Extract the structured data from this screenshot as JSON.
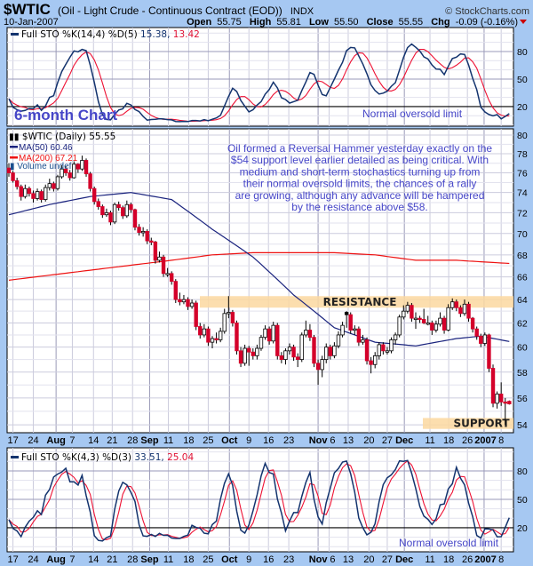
{
  "header": {
    "symbol": "$WTIC",
    "description": "(Oil - Light Crude - Continuous Contract (EOD))",
    "exchange": "INDX",
    "date": "10-Jan-2007",
    "watermark": "© StockCharts.com",
    "open_label": "Open",
    "open": "55.75",
    "high_label": "High",
    "high": "55.81",
    "low_label": "Low",
    "low": "55.50",
    "close_label": "Close",
    "close": "55.55",
    "chg_label": "Chg",
    "chg": "-0.09 (-0.16%)"
  },
  "colors": {
    "background": "#a6c8f2",
    "up": "#ffffff",
    "down": "#d4002a",
    "ma50": "#1a237e",
    "ma200": "#ee1111",
    "k_line": "#13336e",
    "d_line": "#ee1133",
    "annotation": "#4646c8",
    "band": "#fbd8a0"
  },
  "top_panel": {
    "legend": "Full STO %K(14,4) %D(5)",
    "k_value": "15.38",
    "d_value": "13.42",
    "title_note": "6-month Chart",
    "note": "Normal oversold limit",
    "ticks": [
      "80",
      "50",
      "20"
    ]
  },
  "main_panel": {
    "legend_price": "$WTIC (Daily) 55.55",
    "legend_ma50": "MA(50) 60.46",
    "legend_ma200": "MA(200) 67.21",
    "legend_volume": "Volume undef",
    "commentary": [
      "Oil formed a Reversal Hammer yesterday exactly on the",
      "$54 support level earlier detailed as being critical. With",
      "medium and short-term stochastics turning up from",
      "their normal oversold limits, the chances of a rally",
      "are growing, although any advance will be hampered",
      "by the resistance above $58."
    ],
    "resistance_label": "RESISTANCE",
    "support_label": "SUPPORT",
    "ticks": [
      "80",
      "78",
      "76",
      "74",
      "72",
      "70",
      "68",
      "66",
      "64",
      "62",
      "60",
      "58",
      "56",
      "54"
    ]
  },
  "bottom_panel": {
    "legend": "Full STO %K(4,3) %D(3)",
    "k_value": "33.51",
    "d_value": "25.04",
    "note": "Normal oversold limit",
    "ticks": [
      "80",
      "50",
      "20"
    ]
  },
  "chart_data": {
    "type": "candlestick",
    "scale": "log",
    "ylim": [
      53.7,
      81
    ],
    "grid": true,
    "first_session": "2006-07-14",
    "last_session": "2007-01-10",
    "x_ticks": [
      {
        "label": "17",
        "i": 1
      },
      {
        "label": "24",
        "i": 6
      },
      {
        "label": "Aug",
        "i": 11.6,
        "bold": true
      },
      {
        "label": "7",
        "i": 15.6
      },
      {
        "label": "14",
        "i": 20.8
      },
      {
        "label": "21",
        "i": 25.4
      },
      {
        "label": "28",
        "i": 30.4
      },
      {
        "label": "Sep",
        "i": 34.6,
        "bold": true
      },
      {
        "label": "11",
        "i": 39.2
      },
      {
        "label": "18",
        "i": 44.2
      },
      {
        "label": "25",
        "i": 49
      },
      {
        "label": "Oct",
        "i": 54.2,
        "bold": true
      },
      {
        "label": "9",
        "i": 59
      },
      {
        "label": "16",
        "i": 63.8
      },
      {
        "label": "23",
        "i": 68.8
      },
      {
        "label": "Nov",
        "i": 76,
        "bold": true
      },
      {
        "label": "6",
        "i": 78.7
      },
      {
        "label": "13",
        "i": 83.4
      },
      {
        "label": "20",
        "i": 88.5
      },
      {
        "label": "27",
        "i": 93
      },
      {
        "label": "Dec",
        "i": 97.2,
        "bold": true
      },
      {
        "label": "11",
        "i": 103.5
      },
      {
        "label": "18",
        "i": 108.1
      },
      {
        "label": "26",
        "i": 112.7
      },
      {
        "label": "2007",
        "i": 116.8,
        "bold": true
      },
      {
        "label": "8",
        "i": 121
      }
    ],
    "ohlc": [
      [
        76.5,
        77.0,
        75.6,
        76.0
      ],
      [
        76.0,
        76.2,
        75.0,
        75.2
      ],
      [
        75.2,
        75.5,
        74.3,
        74.6
      ],
      [
        74.6,
        74.8,
        73.2,
        73.6
      ],
      [
        73.6,
        74.8,
        73.4,
        74.4
      ],
      [
        74.4,
        74.6,
        73.6,
        73.9
      ],
      [
        73.9,
        74.2,
        73.0,
        73.4
      ],
      [
        73.4,
        74.4,
        73.2,
        74.1
      ],
      [
        74.1,
        74.3,
        73.0,
        73.3
      ],
      [
        73.3,
        74.8,
        73.1,
        74.5
      ],
      [
        74.5,
        75.4,
        74.2,
        74.9
      ],
      [
        74.9,
        75.1,
        74.1,
        74.4
      ],
      [
        74.4,
        75.8,
        74.2,
        75.6
      ],
      [
        75.6,
        76.8,
        75.4,
        76.4
      ],
      [
        76.4,
        76.7,
        75.7,
        76.0
      ],
      [
        76.0,
        76.3,
        75.2,
        75.5
      ],
      [
        75.5,
        77.2,
        75.4,
        76.9
      ],
      [
        76.9,
        77.0,
        76.0,
        76.4
      ],
      [
        76.4,
        77.8,
        76.2,
        77.3
      ],
      [
        77.3,
        77.5,
        75.6,
        75.9
      ],
      [
        75.9,
        76.1,
        74.1,
        74.4
      ],
      [
        74.4,
        74.6,
        72.8,
        73.1
      ],
      [
        73.1,
        73.4,
        72.3,
        72.6
      ],
      [
        72.6,
        72.8,
        71.5,
        71.8
      ],
      [
        71.8,
        72.4,
        71.6,
        72.0
      ],
      [
        72.0,
        72.2,
        70.8,
        71.1
      ],
      [
        71.1,
        73.0,
        70.9,
        72.8
      ],
      [
        72.8,
        73.1,
        72.2,
        72.5
      ],
      [
        72.5,
        72.7,
        71.4,
        71.7
      ],
      [
        71.7,
        73.2,
        71.5,
        72.8
      ],
      [
        72.8,
        73.0,
        72.0,
        72.3
      ],
      [
        72.3,
        72.4,
        70.3,
        70.6
      ],
      [
        70.6,
        70.9,
        69.8,
        70.1
      ],
      [
        70.1,
        70.6,
        69.7,
        70.2
      ],
      [
        70.2,
        70.4,
        69.0,
        69.3
      ],
      [
        69.3,
        69.6,
        68.9,
        69.2
      ],
      [
        69.2,
        69.3,
        67.2,
        67.5
      ],
      [
        67.5,
        68.3,
        67.3,
        67.8
      ],
      [
        67.8,
        68.0,
        66.0,
        66.3
      ],
      [
        66.3,
        66.8,
        66.0,
        66.3
      ],
      [
        66.3,
        66.5,
        65.3,
        65.6
      ],
      [
        65.6,
        65.8,
        63.7,
        64.0
      ],
      [
        64.0,
        64.6,
        63.5,
        63.8
      ],
      [
        63.8,
        64.4,
        63.6,
        64.0
      ],
      [
        64.0,
        64.2,
        63.1,
        63.4
      ],
      [
        63.4,
        64.0,
        63.2,
        63.7
      ],
      [
        63.7,
        63.9,
        61.4,
        61.7
      ],
      [
        61.7,
        62.0,
        60.7,
        61.0
      ],
      [
        61.0,
        61.9,
        60.8,
        61.5
      ],
      [
        61.5,
        61.7,
        60.1,
        60.4
      ],
      [
        60.4,
        60.9,
        59.9,
        60.7
      ],
      [
        60.7,
        61.2,
        60.3,
        60.6
      ],
      [
        60.6,
        61.6,
        60.4,
        61.3
      ],
      [
        61.3,
        63.2,
        61.1,
        62.8
      ],
      [
        62.8,
        64.3,
        62.4,
        62.9
      ],
      [
        62.9,
        63.1,
        61.7,
        62.0
      ],
      [
        62.0,
        62.2,
        59.4,
        59.7
      ],
      [
        59.7,
        60.0,
        58.4,
        58.7
      ],
      [
        58.7,
        60.2,
        58.5,
        59.9
      ],
      [
        59.9,
        60.1,
        58.5,
        59.6
      ],
      [
        59.6,
        59.9,
        59.0,
        59.3
      ],
      [
        59.3,
        60.2,
        59.0,
        59.9
      ],
      [
        59.9,
        61.0,
        59.7,
        60.8
      ],
      [
        60.8,
        61.8,
        60.6,
        61.5
      ],
      [
        61.5,
        61.7,
        60.2,
        60.5
      ],
      [
        60.5,
        62.1,
        60.3,
        61.8
      ],
      [
        61.8,
        62.0,
        59.0,
        59.3
      ],
      [
        59.3,
        59.6,
        58.7,
        59.0
      ],
      [
        59.0,
        59.9,
        58.6,
        59.7
      ],
      [
        59.7,
        60.3,
        59.4,
        60.0
      ],
      [
        60.0,
        60.2,
        58.9,
        59.2
      ],
      [
        59.2,
        59.5,
        58.4,
        59.0
      ],
      [
        59.0,
        61.2,
        58.8,
        61.0
      ],
      [
        61.0,
        62.2,
        60.8,
        61.4
      ],
      [
        61.4,
        61.9,
        60.5,
        60.8
      ],
      [
        60.8,
        61.0,
        58.4,
        58.7
      ],
      [
        58.7,
        59.0,
        57.0,
        58.2
      ],
      [
        58.2,
        59.3,
        57.6,
        59.0
      ],
      [
        59.0,
        60.3,
        58.7,
        60.0
      ],
      [
        60.0,
        60.2,
        59.0,
        59.3
      ],
      [
        59.3,
        60.4,
        59.1,
        60.1
      ],
      [
        60.1,
        61.3,
        59.9,
        61.0
      ],
      [
        61.0,
        62.1,
        60.8,
        61.8
      ],
      [
        62.9,
        63.0,
        61.6,
        62.7
      ],
      [
        62.7,
        62.9,
        61.1,
        61.4
      ],
      [
        61.4,
        61.8,
        61.0,
        61.5
      ],
      [
        61.5,
        61.7,
        60.1,
        60.4
      ],
      [
        60.4,
        61.0,
        60.2,
        60.6
      ],
      [
        60.6,
        60.8,
        58.6,
        58.9
      ],
      [
        58.9,
        59.2,
        57.9,
        58.6
      ],
      [
        58.6,
        59.6,
        58.3,
        59.3
      ],
      [
        59.3,
        60.4,
        59.0,
        60.2
      ],
      [
        60.2,
        60.4,
        59.4,
        59.7
      ],
      [
        59.7,
        60.0,
        59.4,
        59.7
      ],
      [
        59.7,
        60.8,
        59.5,
        60.6
      ],
      [
        60.6,
        61.2,
        60.2,
        61.0
      ],
      [
        61.0,
        62.7,
        60.8,
        62.5
      ],
      [
        62.5,
        63.5,
        62.3,
        63.0
      ],
      [
        63.0,
        63.8,
        62.8,
        63.5
      ],
      [
        63.5,
        63.7,
        62.1,
        62.4
      ],
      [
        62.4,
        62.9,
        61.5,
        62.4
      ],
      [
        62.4,
        62.6,
        62.0,
        62.3
      ],
      [
        62.3,
        63.2,
        61.9,
        62.0
      ],
      [
        62.0,
        62.6,
        61.8,
        62.0
      ],
      [
        62.0,
        62.2,
        61.0,
        61.4
      ],
      [
        61.4,
        62.2,
        61.2,
        61.9
      ],
      [
        61.9,
        62.9,
        61.7,
        62.4
      ],
      [
        62.4,
        62.6,
        61.1,
        61.4
      ],
      [
        61.4,
        63.6,
        61.3,
        63.3
      ],
      [
        63.3,
        64.1,
        63.1,
        63.8
      ],
      [
        63.8,
        64.0,
        63.0,
        63.3
      ],
      [
        63.3,
        63.5,
        62.5,
        62.8
      ],
      [
        62.8,
        64.0,
        62.6,
        63.6
      ],
      [
        63.6,
        63.8,
        62.1,
        62.4
      ],
      [
        62.4,
        62.5,
        61.2,
        61.5
      ],
      [
        61.5,
        61.7,
        60.6,
        60.9
      ],
      [
        60.9,
        61.1,
        60.0,
        60.3
      ],
      [
        60.3,
        61.2,
        60.1,
        61.0
      ],
      [
        61.0,
        61.1,
        58.0,
        58.3
      ],
      [
        58.3,
        58.6,
        55.3,
        55.6
      ],
      [
        55.6,
        56.5,
        55.2,
        56.3
      ],
      [
        56.3,
        57.2,
        55.4,
        55.7
      ],
      [
        55.7,
        56.0,
        54.0,
        55.6
      ],
      [
        55.75,
        55.81,
        55.5,
        55.55
      ]
    ],
    "ma50": [
      [
        0,
        71.8
      ],
      [
        10,
        72.8
      ],
      [
        20,
        73.6
      ],
      [
        30,
        74.0
      ],
      [
        40,
        73.3
      ],
      [
        50,
        70.4
      ],
      [
        60,
        67.8
      ],
      [
        70,
        64.4
      ],
      [
        80,
        61.6
      ],
      [
        90,
        60.4
      ],
      [
        100,
        60.1
      ],
      [
        110,
        60.7
      ],
      [
        116,
        60.9
      ],
      [
        123,
        60.46
      ]
    ],
    "ma200": [
      [
        0,
        65.7
      ],
      [
        20,
        66.6
      ],
      [
        40,
        67.5
      ],
      [
        50,
        68.0
      ],
      [
        60,
        68.2
      ],
      [
        80,
        68.2
      ],
      [
        90,
        68.0
      ],
      [
        100,
        67.5
      ],
      [
        110,
        67.5
      ],
      [
        123,
        67.21
      ]
    ],
    "resistance": [
      63.3,
      64.3
    ],
    "support": [
      53.7,
      54.5
    ],
    "oversold_level": 20
  }
}
